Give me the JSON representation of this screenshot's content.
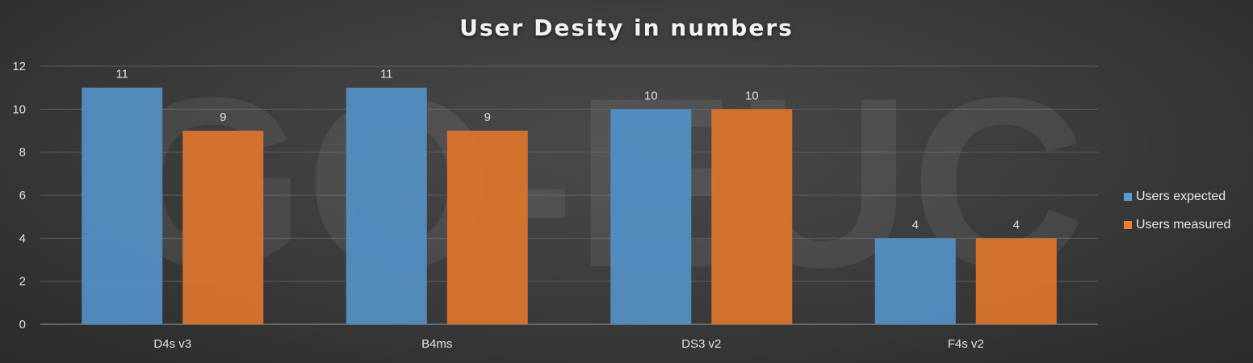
{
  "chart_data": {
    "type": "bar",
    "title": "User Desity in numbers",
    "categories": [
      "D4s v3",
      "B4ms",
      "DS3 v2",
      "F4s v2"
    ],
    "series": [
      {
        "name": "Users expected",
        "values": [
          11,
          11,
          10,
          4
        ],
        "color": "#5b9bd5"
      },
      {
        "name": "Users measured",
        "values": [
          9,
          9,
          10,
          4
        ],
        "color": "#ed7d31"
      }
    ],
    "ylim": [
      0,
      12
    ],
    "yticks": [
      0,
      2,
      4,
      6,
      8,
      10,
      12
    ],
    "grid": true,
    "legend_position": "right",
    "data_labels": true
  },
  "watermark": "GO-EUC"
}
